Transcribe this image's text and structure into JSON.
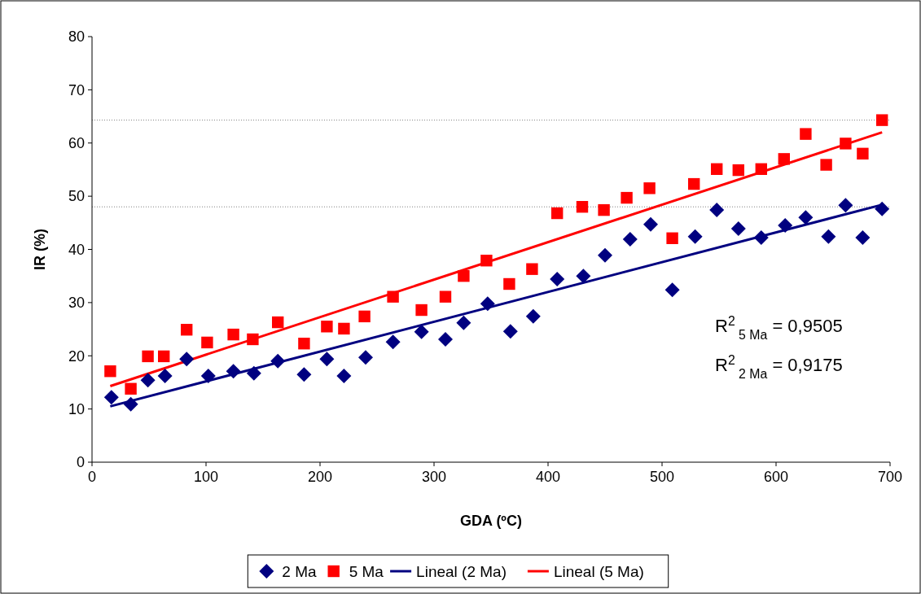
{
  "chart_data": {
    "type": "scatter",
    "xlabel": "GDA (ºC)",
    "ylabel": "IR (%)",
    "xlim": [
      0,
      700
    ],
    "ylim": [
      0,
      80
    ],
    "xticks": [
      0,
      100,
      200,
      300,
      400,
      500,
      600,
      700
    ],
    "yticks": [
      0,
      10,
      20,
      30,
      40,
      50,
      60,
      70,
      80
    ],
    "grid": false,
    "legend": "bottom",
    "series": [
      {
        "name": "2 Ma",
        "marker": "diamond",
        "color": "#000080",
        "x": [
          17,
          34,
          49,
          64,
          83,
          102,
          124,
          142,
          163,
          186,
          206,
          221,
          240,
          264,
          289,
          310,
          326,
          347,
          367,
          387,
          408,
          431,
          450,
          472,
          490,
          509,
          529,
          548,
          567,
          587,
          608,
          626,
          646,
          661,
          676,
          693
        ],
        "values": [
          12.2,
          10.9,
          15.4,
          16.2,
          19.4,
          16.2,
          17.1,
          16.7,
          19.0,
          16.5,
          19.4,
          16.2,
          19.7,
          22.6,
          24.5,
          23.1,
          26.2,
          29.8,
          24.6,
          27.4,
          34.4,
          35.0,
          38.9,
          41.9,
          44.7,
          32.4,
          42.4,
          47.4,
          43.9,
          42.2,
          44.5,
          46.0,
          42.4,
          48.3,
          42.2,
          47.6
        ]
      },
      {
        "name": "5 Ma",
        "marker": "square",
        "color": "#ff0000",
        "x": [
          16,
          34,
          49,
          63,
          83,
          101,
          124,
          141,
          163,
          186,
          206,
          221,
          239,
          264,
          289,
          310,
          326,
          346,
          366,
          386,
          408,
          430,
          449,
          469,
          489,
          509,
          528,
          548,
          567,
          587,
          607,
          626,
          644,
          661,
          676,
          693
        ],
        "values": [
          17.1,
          13.8,
          19.9,
          19.9,
          24.9,
          22.5,
          24.0,
          23.1,
          26.3,
          22.3,
          25.5,
          25.1,
          27.4,
          31.1,
          28.6,
          31.1,
          35.0,
          37.9,
          33.5,
          36.3,
          46.8,
          48.0,
          47.4,
          49.7,
          51.5,
          42.1,
          52.3,
          55.1,
          54.9,
          55.1,
          57.0,
          61.7,
          55.9,
          59.9,
          58.0,
          64.3
        ]
      },
      {
        "name": "Lineal (2 Ma)",
        "type": "line",
        "color": "#000080",
        "x": [
          16,
          693
        ],
        "values": [
          10.5,
          48.4
        ]
      },
      {
        "name": "Lineal (5 Ma)",
        "type": "line",
        "color": "#ff0000",
        "x": [
          16,
          693
        ],
        "values": [
          14.3,
          62.0
        ]
      }
    ],
    "ref_lines": [
      {
        "axis": "y",
        "value": 64.3,
        "color": "#808080",
        "line_style": "dotted"
      },
      {
        "axis": "y",
        "value": 48.0,
        "color": "#808080",
        "line_style": "dotted"
      }
    ],
    "annotations": [
      "R$^{2}$$_{ 5 Ma}$ = 0,9505",
      "R$^{2}$$_{ 2 Ma}$ = 0,9175"
    ]
  }
}
